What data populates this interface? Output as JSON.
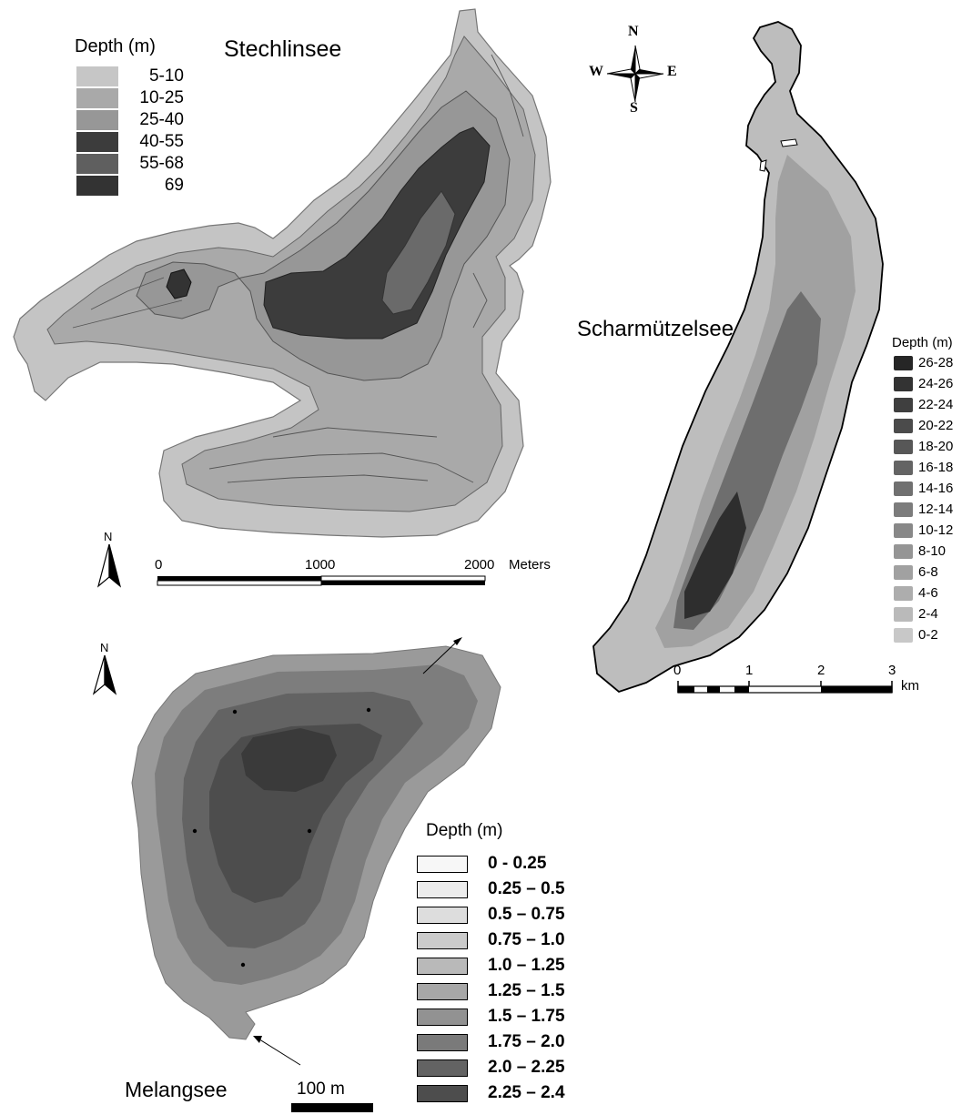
{
  "stechlinsee": {
    "title": "Stechlinsee",
    "legend_title": "Depth (m)",
    "legend": [
      {
        "label": "5-10",
        "color": "#c6c6c6"
      },
      {
        "label": "10-25",
        "color": "#a9a9a9"
      },
      {
        "label": "25-40",
        "color": "#979797"
      },
      {
        "label": "40-55",
        "color": "#3c3c3c"
      },
      {
        "label": "55-68",
        "color": "#5f5f5f"
      },
      {
        "label": "69",
        "color": "#333333"
      }
    ],
    "scale_labels": [
      "0",
      "1000",
      "2000",
      "Meters"
    ],
    "north_label": "N"
  },
  "scharmutzelsee": {
    "title": "Scharmützelsee",
    "legend_title": "Depth (m)",
    "legend": [
      {
        "label": "26-28",
        "color": "#262626"
      },
      {
        "label": "24-26",
        "color": "#333333"
      },
      {
        "label": "22-24",
        "color": "#3f3f3f"
      },
      {
        "label": "20-22",
        "color": "#4b4b4b"
      },
      {
        "label": "18-20",
        "color": "#575757"
      },
      {
        "label": "16-18",
        "color": "#646464"
      },
      {
        "label": "14-16",
        "color": "#707070"
      },
      {
        "label": "12-14",
        "color": "#7c7c7c"
      },
      {
        "label": "10-12",
        "color": "#888888"
      },
      {
        "label": "8-10",
        "color": "#959595"
      },
      {
        "label": "6-8",
        "color": "#a1a1a1"
      },
      {
        "label": "4-6",
        "color": "#adadad"
      },
      {
        "label": "2-4",
        "color": "#bababa"
      },
      {
        "label": "0-2",
        "color": "#c8c8c8"
      }
    ],
    "scale_labels": [
      "0",
      "1",
      "2",
      "3",
      "km"
    ],
    "compass": {
      "n": "N",
      "s": "S",
      "e": "E",
      "w": "W"
    }
  },
  "melangsee": {
    "title": "Melangsee",
    "legend_title": "Depth (m)",
    "legend": [
      {
        "label": "0 - 0.25",
        "color": "#f7f7f7"
      },
      {
        "label": "0.25 – 0.5",
        "color": "#ececec"
      },
      {
        "label": "0.5 – 0.75",
        "color": "#dddddd"
      },
      {
        "label": "0.75 – 1.0",
        "color": "#cbcbcb"
      },
      {
        "label": "1.0 – 1.25",
        "color": "#b9b9b9"
      },
      {
        "label": "1.25 – 1.5",
        "color": "#a7a7a7"
      },
      {
        "label": "1.5 – 1.75",
        "color": "#929292"
      },
      {
        "label": "1.75 – 2.0",
        "color": "#7a7a7a"
      },
      {
        "label": "2.0 – 2.25",
        "color": "#636363"
      },
      {
        "label": "2.25 – 2.4",
        "color": "#4d4d4d"
      }
    ],
    "scale_label": "100 m",
    "north_label": "N"
  }
}
